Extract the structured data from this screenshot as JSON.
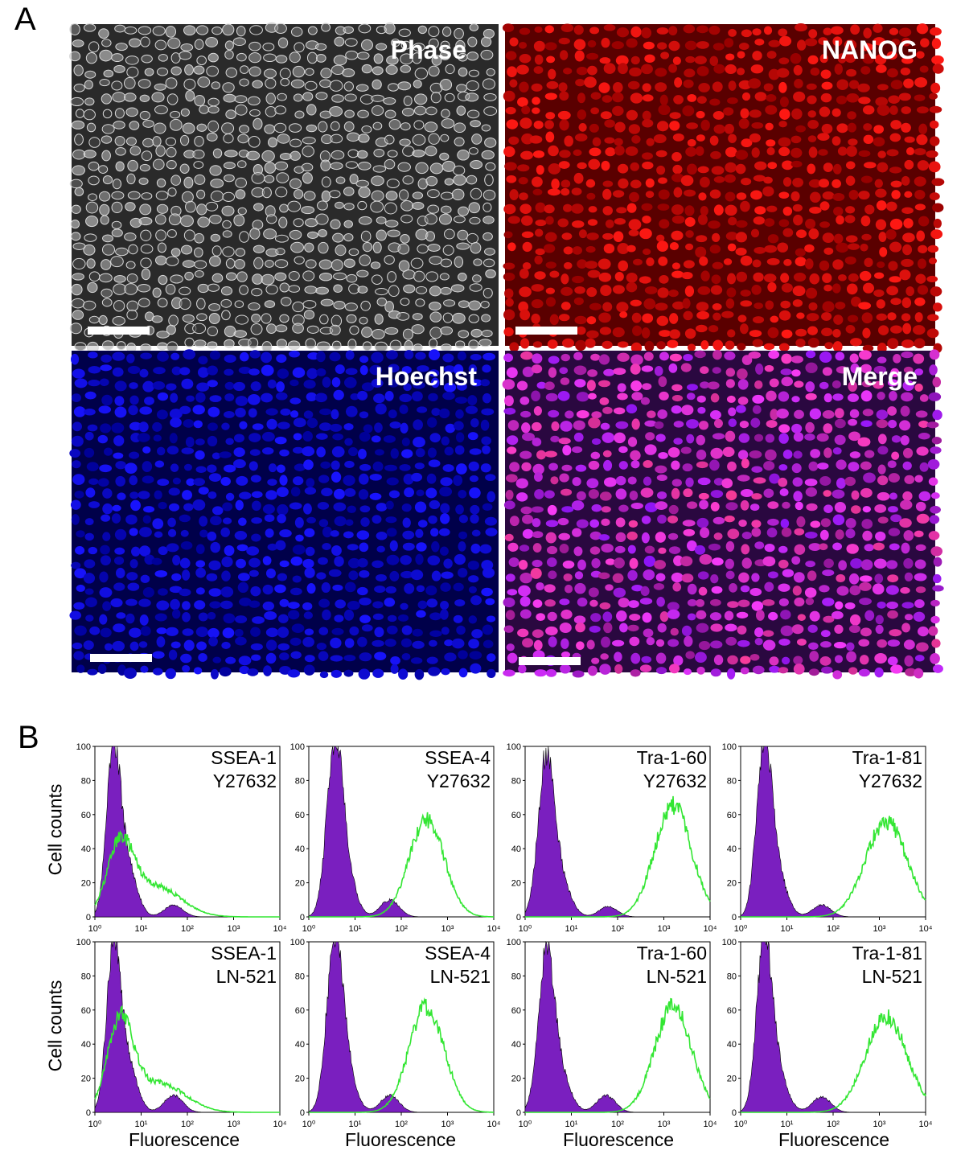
{
  "panel_a": {
    "letter": "A",
    "images": [
      {
        "label": "Phase",
        "kind": "phase"
      },
      {
        "label": "NANOG",
        "kind": "nanog"
      },
      {
        "label": "Hoechst",
        "kind": "hoechst"
      },
      {
        "label": "Merge",
        "kind": "merge"
      }
    ]
  },
  "panel_b": {
    "letter": "B",
    "ylabel": "Cell counts",
    "xlabel": "Fluorescence",
    "colors": {
      "isotype_fill": "#7a1fbf",
      "marker_line": "#33e633"
    }
  },
  "chart_data": [
    {
      "type": "area",
      "marker": "SSEA-1",
      "condition": "Y27632",
      "xscale": "log",
      "xlim": [
        1,
        10000
      ],
      "ylim": [
        0,
        100
      ],
      "x_ticks": [
        "10⁰",
        "10¹",
        "10²",
        "10³",
        "10⁴"
      ],
      "y_ticks": [
        "0",
        "20",
        "40",
        "60",
        "80",
        "100"
      ],
      "series": [
        {
          "kind": "isotype",
          "peaks": [
            [
              0.4,
              92,
              0.15
            ],
            [
              0.7,
              30,
              0.2
            ],
            [
              1.7,
              7,
              0.2
            ]
          ]
        },
        {
          "kind": "marker",
          "peaks": [
            [
              0.55,
              40,
              0.28
            ],
            [
              1.3,
              18,
              0.55
            ]
          ]
        }
      ]
    },
    {
      "type": "area",
      "marker": "SSEA-4",
      "condition": "Y27632",
      "xscale": "log",
      "xlim": [
        1,
        10000
      ],
      "ylim": [
        0,
        100
      ],
      "x_ticks": [
        "10⁰",
        "10¹",
        "10²",
        "10³",
        "10⁴"
      ],
      "y_ticks": [
        "0",
        "20",
        "40",
        "60",
        "80",
        "100"
      ],
      "series": [
        {
          "kind": "isotype",
          "peaks": [
            [
              0.55,
              85,
              0.17
            ],
            [
              0.75,
              30,
              0.22
            ],
            [
              1.75,
              10,
              0.2
            ]
          ]
        },
        {
          "kind": "marker",
          "peaks": [
            [
              2.55,
              57,
              0.38
            ]
          ]
        }
      ]
    },
    {
      "type": "area",
      "marker": "Tra-1-60",
      "condition": "Y27632",
      "xscale": "log",
      "xlim": [
        1,
        10000
      ],
      "ylim": [
        0,
        100
      ],
      "x_ticks": [
        "10⁰",
        "10¹",
        "10²",
        "10³",
        "10⁴"
      ],
      "y_ticks": [
        "0",
        "20",
        "40",
        "60",
        "80",
        "100"
      ],
      "series": [
        {
          "kind": "isotype",
          "peaks": [
            [
              0.45,
              88,
              0.17
            ],
            [
              0.75,
              22,
              0.22
            ],
            [
              1.8,
              6,
              0.2
            ]
          ]
        },
        {
          "kind": "marker",
          "peaks": [
            [
              3.2,
              65,
              0.4
            ]
          ]
        }
      ]
    },
    {
      "type": "area",
      "marker": "Tra-1-81",
      "condition": "Y27632",
      "xscale": "log",
      "xlim": [
        1,
        10000
      ],
      "ylim": [
        0,
        100
      ],
      "x_ticks": [
        "10⁰",
        "10¹",
        "10²",
        "10³",
        "10⁴"
      ],
      "y_ticks": [
        "0",
        "20",
        "40",
        "60",
        "80",
        "100"
      ],
      "series": [
        {
          "kind": "isotype",
          "peaks": [
            [
              0.5,
              92,
              0.16
            ],
            [
              0.75,
              28,
              0.22
            ],
            [
              1.75,
              7,
              0.2
            ]
          ]
        },
        {
          "kind": "marker",
          "peaks": [
            [
              3.15,
              56,
              0.45
            ]
          ]
        }
      ]
    },
    {
      "type": "area",
      "marker": "SSEA-1",
      "condition": "LN-521",
      "xscale": "log",
      "xlim": [
        1,
        10000
      ],
      "ylim": [
        0,
        100
      ],
      "x_ticks": [
        "10⁰",
        "10¹",
        "10²",
        "10³",
        "10⁴"
      ],
      "y_ticks": [
        "0",
        "20",
        "40",
        "60",
        "80",
        "100"
      ],
      "series": [
        {
          "kind": "isotype",
          "peaks": [
            [
              0.4,
              92,
              0.15
            ],
            [
              0.7,
              30,
              0.2
            ],
            [
              1.7,
              10,
              0.2
            ]
          ]
        },
        {
          "kind": "marker",
          "peaks": [
            [
              0.55,
              52,
              0.28
            ],
            [
              1.4,
              17,
              0.55
            ]
          ]
        }
      ]
    },
    {
      "type": "area",
      "marker": "SSEA-4",
      "condition": "LN-521",
      "xscale": "log",
      "xlim": [
        1,
        10000
      ],
      "ylim": [
        0,
        100
      ],
      "x_ticks": [
        "10⁰",
        "10¹",
        "10²",
        "10³",
        "10⁴"
      ],
      "y_ticks": [
        "0",
        "20",
        "40",
        "60",
        "80",
        "100"
      ],
      "series": [
        {
          "kind": "isotype",
          "peaks": [
            [
              0.55,
              85,
              0.17
            ],
            [
              0.75,
              30,
              0.22
            ],
            [
              1.75,
              10,
              0.2
            ]
          ]
        },
        {
          "kind": "marker",
          "peaks": [
            [
              2.55,
              62,
              0.38
            ]
          ]
        }
      ]
    },
    {
      "type": "area",
      "marker": "Tra-1-60",
      "condition": "LN-521",
      "xscale": "log",
      "xlim": [
        1,
        10000
      ],
      "ylim": [
        0,
        100
      ],
      "x_ticks": [
        "10⁰",
        "10¹",
        "10²",
        "10³",
        "10⁴"
      ],
      "y_ticks": [
        "0",
        "20",
        "40",
        "60",
        "80",
        "100"
      ],
      "series": [
        {
          "kind": "isotype",
          "peaks": [
            [
              0.45,
              88,
              0.17
            ],
            [
              0.75,
              22,
              0.22
            ],
            [
              1.75,
              10,
              0.2
            ]
          ]
        },
        {
          "kind": "marker",
          "peaks": [
            [
              3.2,
              62,
              0.4
            ]
          ]
        }
      ]
    },
    {
      "type": "area",
      "marker": "Tra-1-81",
      "condition": "LN-521",
      "xscale": "log",
      "xlim": [
        1,
        10000
      ],
      "ylim": [
        0,
        100
      ],
      "x_ticks": [
        "10⁰",
        "10¹",
        "10²",
        "10³",
        "10⁴"
      ],
      "y_ticks": [
        "0",
        "20",
        "40",
        "60",
        "80",
        "100"
      ],
      "series": [
        {
          "kind": "isotype",
          "peaks": [
            [
              0.5,
              90,
              0.16
            ],
            [
              0.75,
              28,
              0.22
            ],
            [
              1.75,
              9,
              0.2
            ]
          ]
        },
        {
          "kind": "marker",
          "peaks": [
            [
              3.15,
              56,
              0.45
            ]
          ]
        }
      ]
    }
  ]
}
